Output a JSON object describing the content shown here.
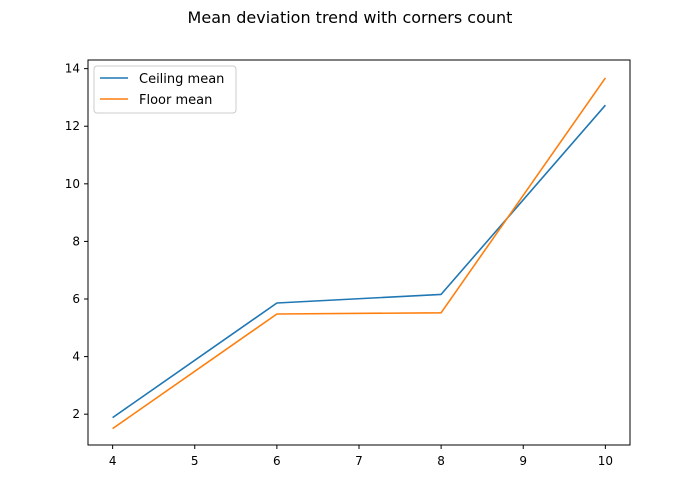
{
  "chart_data": {
    "type": "line",
    "title": "Mean deviation trend with corners count",
    "xlabel": "",
    "ylabel": "",
    "x": [
      4,
      6,
      8,
      10
    ],
    "xticks": [
      4,
      5,
      6,
      7,
      8,
      9,
      10
    ],
    "yticks": [
      2,
      4,
      6,
      8,
      10,
      12,
      14
    ],
    "xlim": [
      3.7,
      10.3
    ],
    "ylim": [
      0.93,
      14.3
    ],
    "grid": false,
    "legend_position": "upper-left",
    "series": [
      {
        "name": "Ceiling mean",
        "color": "#1f77b4",
        "values": [
          1.88,
          5.86,
          6.16,
          12.73
        ]
      },
      {
        "name": "Floor mean",
        "color": "#ff7f0e",
        "values": [
          1.5,
          5.48,
          5.52,
          13.68
        ]
      }
    ]
  }
}
